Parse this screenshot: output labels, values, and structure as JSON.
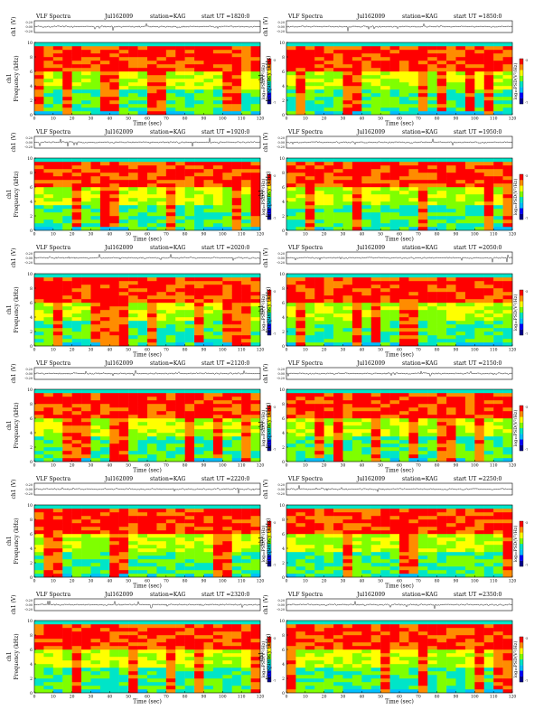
{
  "colors": {
    "scale": [
      "#00008b",
      "#0000ff",
      "#00bfff",
      "#00e5c8",
      "#7fff00",
      "#ffff00",
      "#ff8c00",
      "#ff0000"
    ],
    "band": "#00e0d0",
    "trace": "#000000"
  },
  "shared": {
    "header_label": "VLF Spectra",
    "station_label": "station=KAG",
    "start_prefix": "start UT =",
    "ch1_label": "ch1 (V)",
    "ch1_stack": "ch1",
    "freq_label": "Frequency (kHz)",
    "x_label": "Time (sec)",
    "cbar_label": "log₁₀PSD(V²/Hz)",
    "x_ticks": [
      "0",
      "10",
      "20",
      "30",
      "40",
      "50",
      "60",
      "70",
      "80",
      "90",
      "100",
      "110",
      "120"
    ],
    "y_ticks": [
      "0",
      "2",
      "4",
      "6",
      "8",
      "10"
    ],
    "ch1_ticks": [
      "0.20",
      "0.00",
      "-0.20"
    ],
    "cbar_ticks": [
      "-5",
      "-7"
    ]
  },
  "chart_data": [
    {
      "type": "heatmap",
      "date": "Jul162009",
      "start_ut": "1820:0",
      "xlim": [
        0,
        120
      ],
      "ylim": [
        0,
        10
      ],
      "colorbar_ticks": [
        -5,
        -7
      ]
    },
    {
      "type": "heatmap",
      "date": "Jul162009",
      "start_ut": "1850:0",
      "xlim": [
        0,
        120
      ],
      "ylim": [
        0,
        10
      ],
      "colorbar_ticks": [
        -5,
        -7
      ]
    },
    {
      "type": "heatmap",
      "date": "Jul162009",
      "start_ut": "1920:0",
      "xlim": [
        0,
        120
      ],
      "ylim": [
        0,
        10
      ],
      "colorbar_ticks": [
        -5,
        -7
      ]
    },
    {
      "type": "heatmap",
      "date": "Jul162009",
      "start_ut": "1950:0",
      "xlim": [
        0,
        120
      ],
      "ylim": [
        0,
        10
      ],
      "colorbar_ticks": [
        -5,
        -7
      ]
    },
    {
      "type": "heatmap",
      "date": "Jul162009",
      "start_ut": "2020:0",
      "xlim": [
        0,
        120
      ],
      "ylim": [
        0,
        10
      ],
      "colorbar_ticks": [
        -5,
        -7
      ]
    },
    {
      "type": "heatmap",
      "date": "Jul162009",
      "start_ut": "2050:0",
      "xlim": [
        0,
        120
      ],
      "ylim": [
        0,
        10
      ],
      "colorbar_ticks": [
        -5,
        -7
      ]
    },
    {
      "type": "heatmap",
      "date": "Jul162009",
      "start_ut": "2120:0",
      "xlim": [
        0,
        120
      ],
      "ylim": [
        0,
        10
      ],
      "colorbar_ticks": [
        -5,
        -7
      ]
    },
    {
      "type": "heatmap",
      "date": "Jul162009",
      "start_ut": "2150:0",
      "xlim": [
        0,
        120
      ],
      "ylim": [
        0,
        10
      ],
      "colorbar_ticks": [
        -5,
        -7
      ]
    },
    {
      "type": "heatmap",
      "date": "Jul162009",
      "start_ut": "2220:0",
      "xlim": [
        0,
        120
      ],
      "ylim": [
        0,
        10
      ],
      "colorbar_ticks": [
        -5,
        -7
      ]
    },
    {
      "type": "heatmap",
      "date": "Jul162009",
      "start_ut": "2250:0",
      "xlim": [
        0,
        120
      ],
      "ylim": [
        0,
        10
      ],
      "colorbar_ticks": [
        -5,
        -7
      ]
    },
    {
      "type": "heatmap",
      "date": "Jul162009",
      "start_ut": "2320:0",
      "xlim": [
        0,
        120
      ],
      "ylim": [
        0,
        10
      ],
      "colorbar_ticks": [
        -5,
        -7
      ]
    },
    {
      "type": "heatmap",
      "date": "Jul162009",
      "start_ut": "2350:0",
      "xlim": [
        0,
        120
      ],
      "ylim": [
        0,
        10
      ],
      "colorbar_ticks": [
        -5,
        -7
      ]
    }
  ]
}
